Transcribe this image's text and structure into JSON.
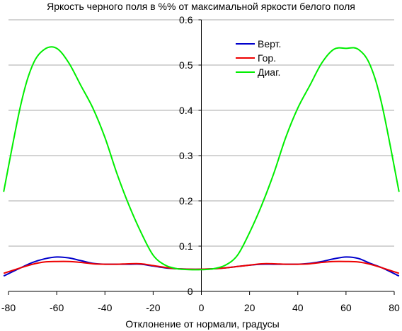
{
  "chart_data": {
    "type": "line",
    "title": "Яркость черного поля в %% от максимальной яркости белого поля",
    "xlabel": "Отклонение от нормали, градусы",
    "ylabel": "",
    "xlim": [
      -80,
      80
    ],
    "ylim": [
      0,
      0.6
    ],
    "x_ticks": [
      "-80",
      "-60",
      "-40",
      "-20",
      "0",
      "20",
      "40",
      "60",
      "80"
    ],
    "y_ticks": [
      "0",
      "0.1",
      "0.2",
      "0.3",
      "0.4",
      "0.5",
      "0.6"
    ],
    "grid": true,
    "legend_position": "top-right",
    "x": [
      -82,
      -75,
      -70,
      -65,
      -60,
      -55,
      -50,
      -45,
      -40,
      -35,
      -30,
      -25,
      -20,
      -15,
      -10,
      -5,
      0,
      5,
      10,
      15,
      20,
      25,
      30,
      35,
      40,
      45,
      50,
      55,
      60,
      65,
      70,
      75,
      82
    ],
    "series": [
      {
        "name": "Верт.",
        "color": "#0000cc",
        "values": [
          0.034,
          0.052,
          0.064,
          0.072,
          0.076,
          0.074,
          0.068,
          0.062,
          0.06,
          0.06,
          0.06,
          0.06,
          0.056,
          0.052,
          0.05,
          0.049,
          0.049,
          0.05,
          0.052,
          0.055,
          0.058,
          0.06,
          0.06,
          0.06,
          0.06,
          0.062,
          0.066,
          0.072,
          0.076,
          0.073,
          0.062,
          0.052,
          0.034
        ]
      },
      {
        "name": "Гор.",
        "color": "#ee0000",
        "values": [
          0.04,
          0.052,
          0.06,
          0.065,
          0.066,
          0.066,
          0.064,
          0.061,
          0.06,
          0.06,
          0.061,
          0.061,
          0.057,
          0.053,
          0.05,
          0.049,
          0.049,
          0.05,
          0.052,
          0.055,
          0.058,
          0.061,
          0.061,
          0.06,
          0.06,
          0.061,
          0.064,
          0.066,
          0.066,
          0.065,
          0.06,
          0.052,
          0.04
        ]
      },
      {
        "name": "Диаг.",
        "color": "#00ee00",
        "values": [
          0.22,
          0.41,
          0.5,
          0.535,
          0.537,
          0.505,
          0.455,
          0.405,
          0.34,
          0.26,
          0.19,
          0.13,
          0.08,
          0.058,
          0.05,
          0.048,
          0.048,
          0.05,
          0.058,
          0.08,
          0.13,
          0.19,
          0.26,
          0.34,
          0.405,
          0.455,
          0.505,
          0.535,
          0.537,
          0.535,
          0.5,
          0.41,
          0.22
        ]
      }
    ]
  }
}
